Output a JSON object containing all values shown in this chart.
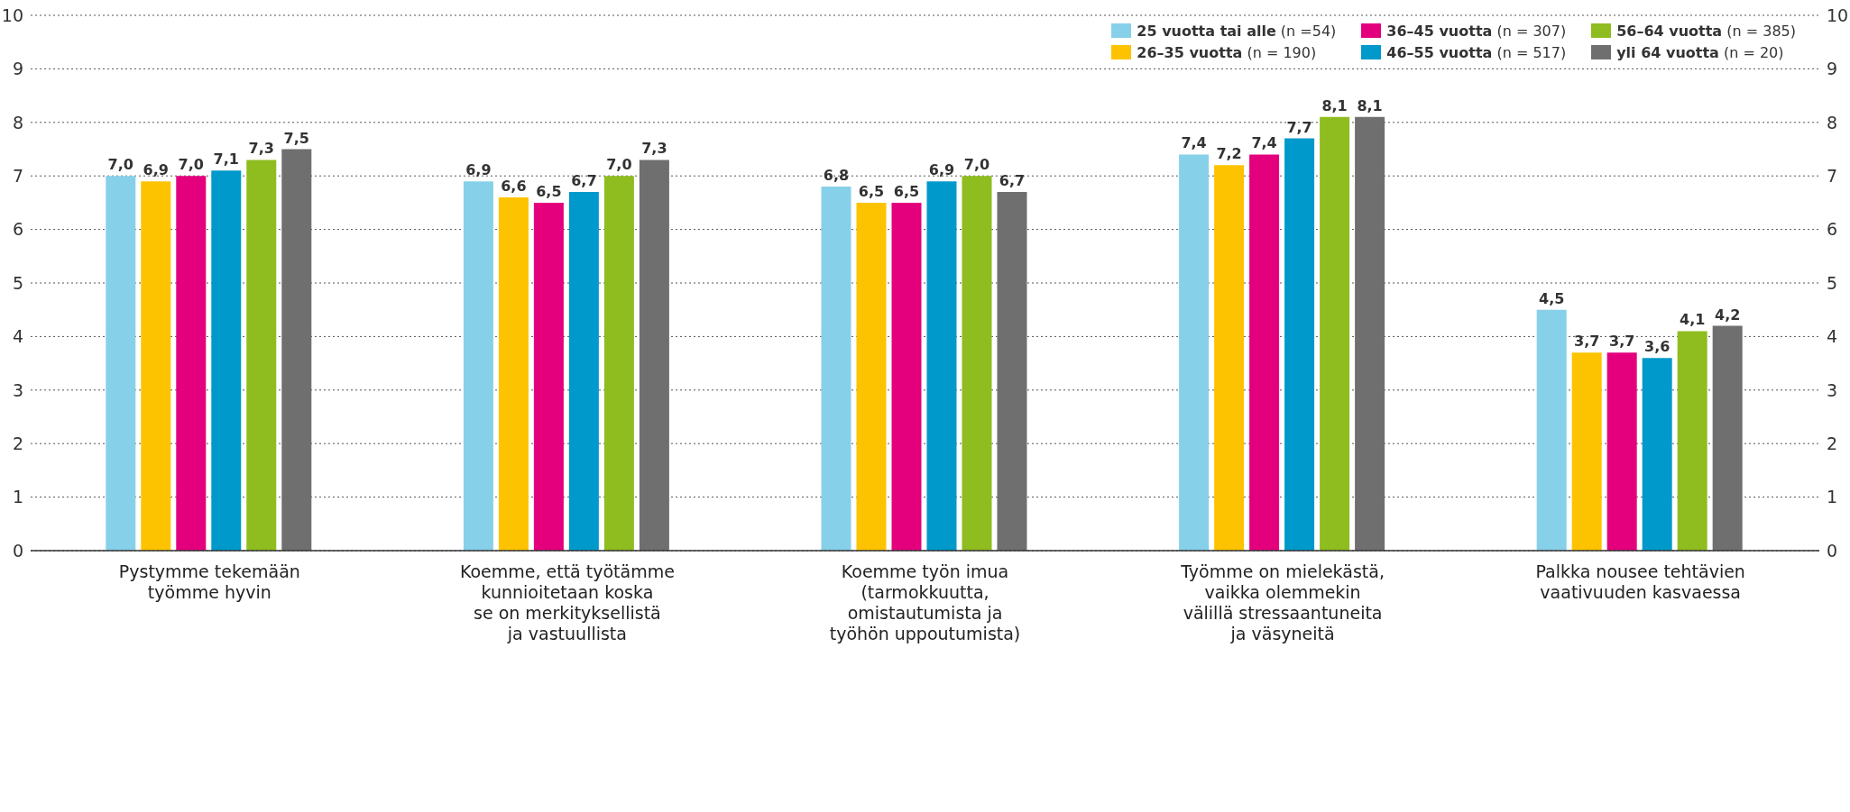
{
  "chart_data": {
    "type": "bar",
    "categories": [
      "Pystymme tekemään\ntyömme hyvin",
      "Koemme, että työtämme\nkunnioitetaan koska\nse on merkityksellistä\nja vastuullista",
      "Koemme työn imua\n(tarmokkuutta,\nomistautumista ja\ntyöhön uppoutumista)",
      "Työmme on mielekästä,\nvaikka olemmekin\nvälillä stressaantuneita\nja väsyneitä",
      "Palkka nousee tehtävien\nvaativuuden kasvaessa"
    ],
    "series": [
      {
        "name": "25 vuotta tai alle (n =54)",
        "color": "#87d0ea",
        "values": [
          7.0,
          6.9,
          6.8,
          7.4,
          4.5
        ],
        "value_labels": [
          "7,0",
          "6,9",
          "6,8",
          "7,4",
          "4,5"
        ]
      },
      {
        "name": "26–35 vuotta (n = 190)",
        "color": "#fdc300",
        "values": [
          6.9,
          6.6,
          6.5,
          7.2,
          3.7
        ],
        "value_labels": [
          "6,9",
          "6,6",
          "6,5",
          "7,2",
          "3,7"
        ]
      },
      {
        "name": "36–45 vuotta (n = 307)",
        "color": "#e4007d",
        "values": [
          7.0,
          6.5,
          6.5,
          7.4,
          3.7
        ],
        "value_labels": [
          "7,0",
          "6,5",
          "6,5",
          "7,4",
          "3,7"
        ]
      },
      {
        "name": "46–55 vuotta (n = 517)",
        "color": "#0099cb",
        "values": [
          7.1,
          6.7,
          6.9,
          7.7,
          3.6
        ],
        "value_labels": [
          "7,1",
          "6,7",
          "6,9",
          "7,7",
          "3,6"
        ]
      },
      {
        "name": "56–64 vuotta (n = 385)",
        "color": "#8fbc1f",
        "values": [
          7.3,
          7.0,
          7.0,
          8.1,
          4.1
        ],
        "value_labels": [
          "7,3",
          "7,0",
          "7,0",
          "8,1",
          "4,1"
        ]
      },
      {
        "name": "yli 64 vuotta (n = 20)",
        "color": "#6f6f6f",
        "values": [
          7.5,
          7.3,
          6.7,
          8.1,
          4.2
        ],
        "value_labels": [
          "7,5",
          "7,3",
          "6,7",
          "8,1",
          "4,2"
        ]
      }
    ],
    "ylim": [
      0,
      10
    ],
    "yticks": [
      0,
      1,
      2,
      3,
      4,
      5,
      6,
      7,
      8,
      9,
      10
    ],
    "y2lim": [
      0,
      10
    ],
    "y2ticks": [
      0,
      1,
      2,
      3,
      4,
      5,
      6,
      7,
      8,
      9,
      10
    ],
    "grid": "y",
    "legend": "top right"
  }
}
